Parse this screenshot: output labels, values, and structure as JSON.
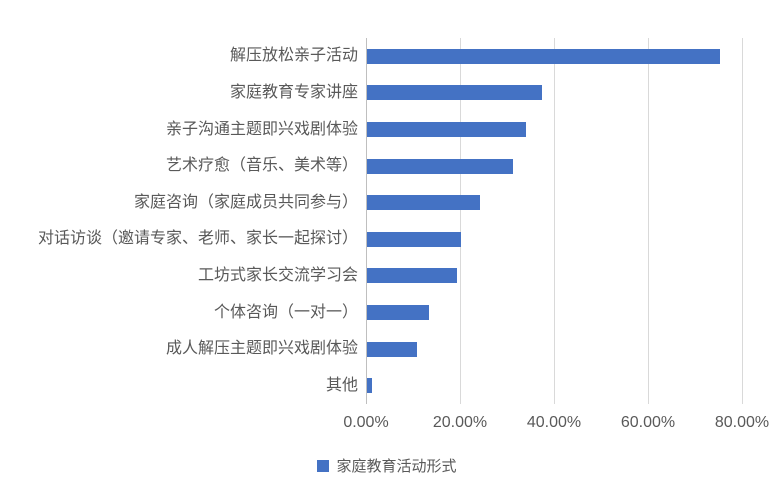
{
  "chart_data": {
    "type": "bar",
    "orientation": "horizontal",
    "title": "",
    "legend": "家庭教育活动形式",
    "legend_position": "bottom-center",
    "categories": [
      "解压放松亲子活动",
      "家庭教育专家讲座",
      "亲子沟通主题即兴戏剧体验",
      "艺术疗愈（音乐、美术等）",
      "家庭咨询（家庭成员共同参与）",
      "对话访谈（邀请专家、老师、家长一起探讨）",
      "工坊式家长交流学习会",
      "个体咨询（一对一）",
      "成人解压主题即兴戏剧体验",
      "其他"
    ],
    "values": [
      75.0,
      37.2,
      33.8,
      31.0,
      24.0,
      20.0,
      19.2,
      13.2,
      10.7,
      1.1
    ],
    "x_tick_labels": [
      "0.00%",
      "20.00%",
      "40.00%",
      "60.00%",
      "80.00%"
    ],
    "x_tick_values": [
      0,
      20,
      40,
      60,
      80
    ],
    "xlim": [
      0,
      87
    ],
    "grid": "vertical",
    "colors": {
      "bar": "#4472c4",
      "text": "#595959",
      "gridline": "#d9d9d9",
      "axisline": "#bfbfbf",
      "background": "#ffffff"
    }
  }
}
